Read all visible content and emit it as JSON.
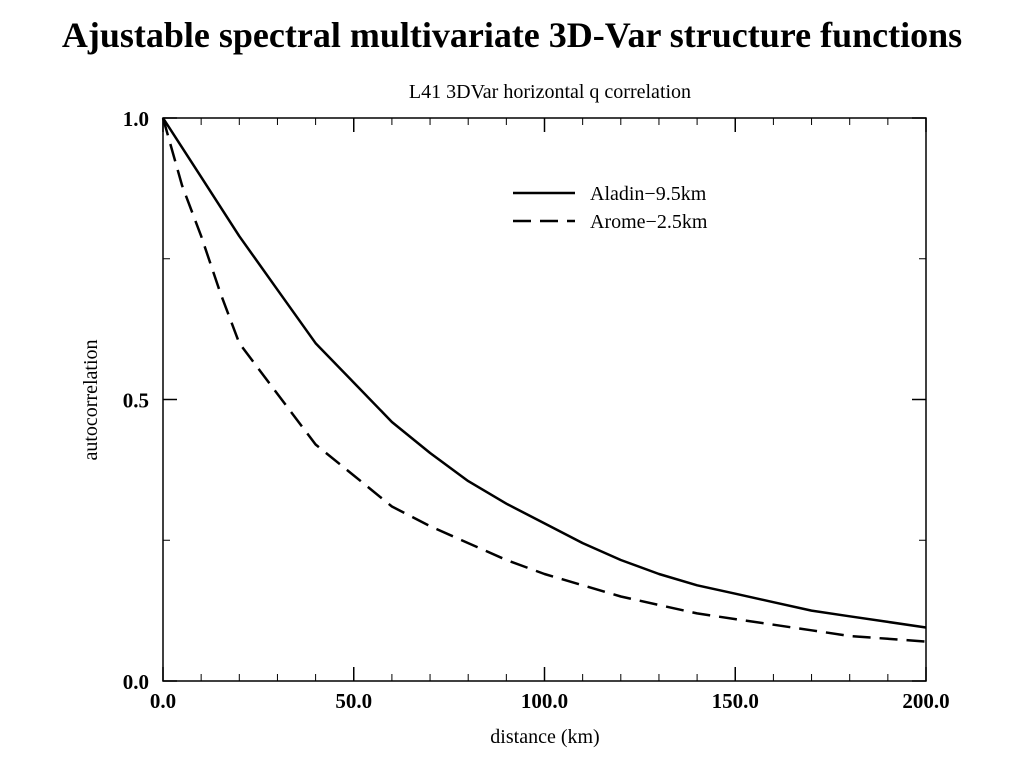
{
  "slide": {
    "title": "Ajustable spectral multivariate 3D-Var structure functions"
  },
  "chart_data": {
    "type": "line",
    "title": "L41 3DVar horizontal q correlation",
    "xlabel": "distance (km)",
    "ylabel": "autocorrelation",
    "xlim": [
      0,
      200
    ],
    "ylim": [
      0,
      1
    ],
    "x_ticks": [
      0,
      50,
      100,
      150,
      200
    ],
    "x_tick_labels": [
      "0.0",
      "50.0",
      "100.0",
      "150.0",
      "200.0"
    ],
    "y_ticks": [
      0,
      0.5,
      1.0
    ],
    "y_tick_labels": [
      "0.0",
      "0.5",
      "1.0"
    ],
    "x_minor_step": 10,
    "y_minor_step": 0.25,
    "grid": false,
    "legend_position": "top-right",
    "series": [
      {
        "name": "Aladin−9.5km",
        "style": "solid",
        "color": "#000000",
        "x": [
          0,
          10,
          20,
          30,
          40,
          50,
          60,
          70,
          80,
          90,
          100,
          110,
          120,
          130,
          140,
          150,
          160,
          170,
          180,
          190,
          200
        ],
        "y": [
          1.0,
          0.895,
          0.79,
          0.695,
          0.6,
          0.53,
          0.46,
          0.405,
          0.355,
          0.315,
          0.28,
          0.245,
          0.215,
          0.19,
          0.17,
          0.155,
          0.14,
          0.125,
          0.115,
          0.105,
          0.095
        ]
      },
      {
        "name": "Arome−2.5km",
        "style": "dashed",
        "color": "#000000",
        "x": [
          0,
          5,
          10,
          15,
          20,
          30,
          40,
          50,
          60,
          70,
          80,
          90,
          100,
          110,
          120,
          130,
          140,
          150,
          160,
          170,
          180,
          190,
          200
        ],
        "y": [
          1.0,
          0.88,
          0.79,
          0.69,
          0.6,
          0.51,
          0.42,
          0.365,
          0.31,
          0.275,
          0.245,
          0.215,
          0.19,
          0.17,
          0.15,
          0.135,
          0.12,
          0.11,
          0.1,
          0.09,
          0.08,
          0.075,
          0.07
        ]
      }
    ]
  }
}
